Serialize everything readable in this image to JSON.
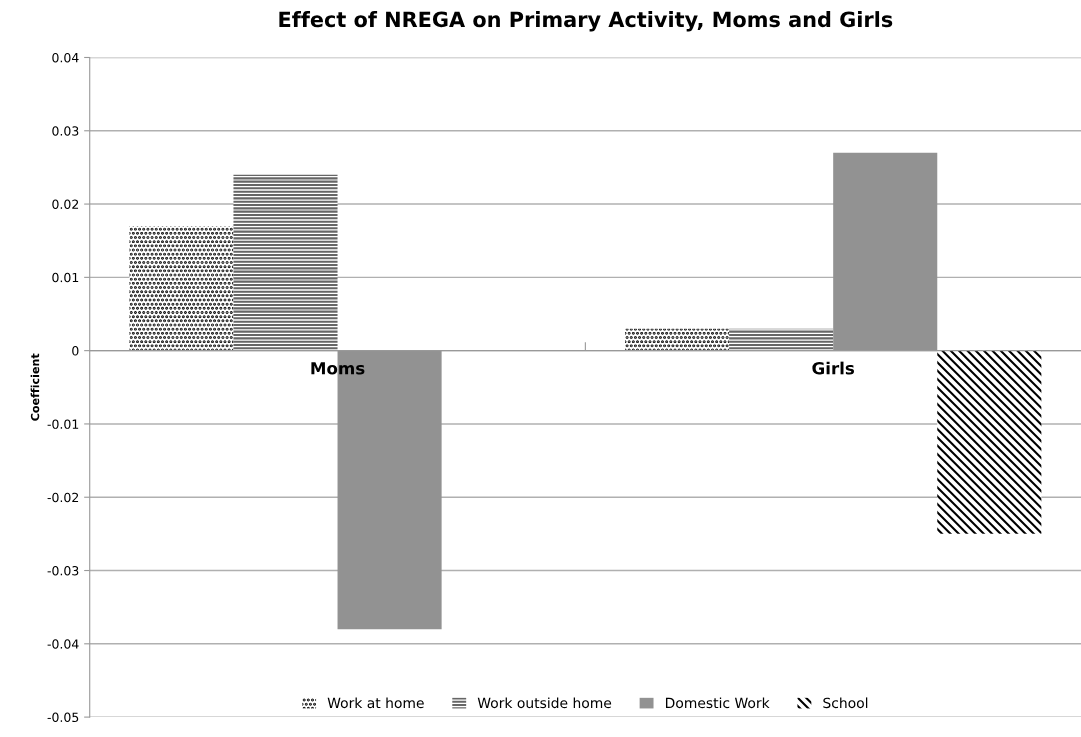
{
  "chart_data": {
    "type": "bar",
    "title": "Effect of NREGA on Primary Activity, Moms and Girls",
    "ylabel": "Coefficient",
    "categories": [
      "Moms",
      "Girls"
    ],
    "series": [
      {
        "name": "Work at home",
        "color": "#000000",
        "values": [
          0.017,
          0.003
        ]
      },
      {
        "name": "Work outside home",
        "color": "#666666",
        "values": [
          0.024,
          0.003
        ]
      },
      {
        "name": "Domestic Work",
        "color": "#929292",
        "values": [
          -0.038,
          0.027
        ]
      },
      {
        "name": "School",
        "color": "#000000",
        "values": [
          null,
          -0.025
        ]
      }
    ],
    "ylim": [
      -0.05,
      0.04
    ],
    "yticks": [
      -0.05,
      -0.04,
      -0.03,
      -0.02,
      -0.01,
      0,
      0.01,
      0.02,
      0.03,
      0.04
    ],
    "grid": "y",
    "legend": "bottom"
  }
}
